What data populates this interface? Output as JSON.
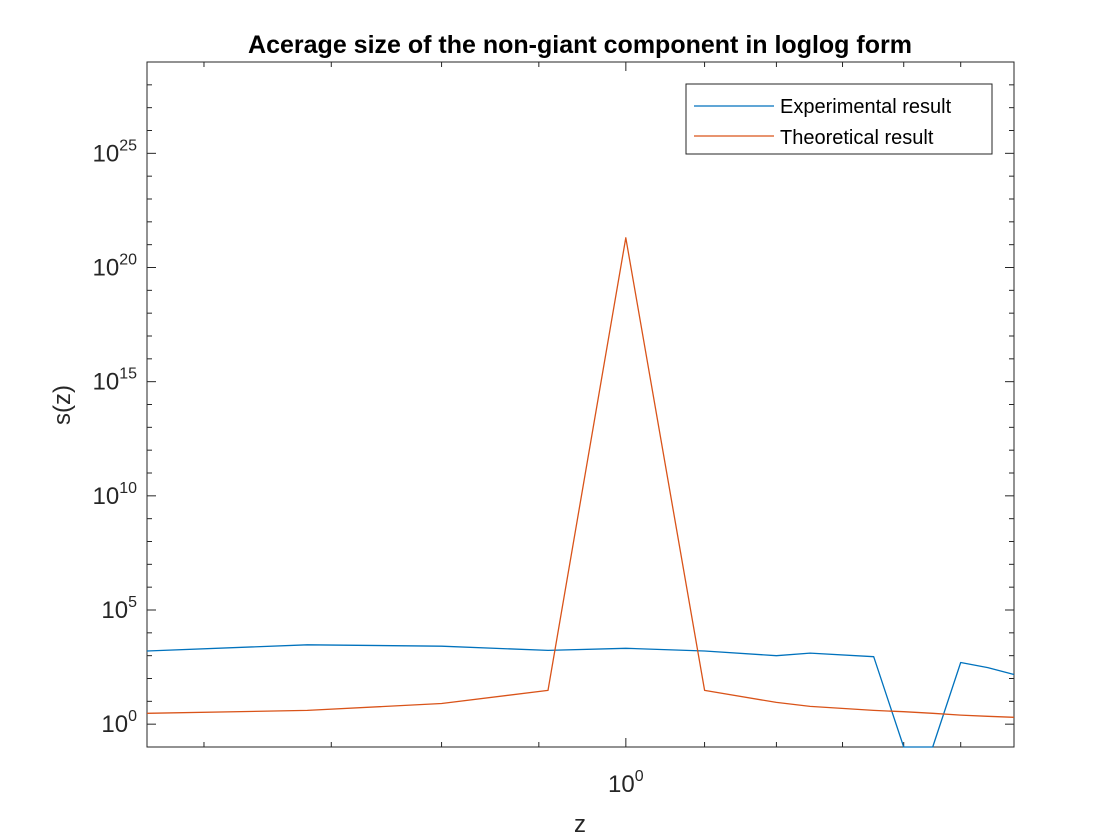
{
  "chart_data": {
    "type": "line",
    "title": "Acerage size of the non-giant component in loglog form",
    "xlabel": "z",
    "ylabel": "s(z)",
    "xscale": "log",
    "yscale": "log",
    "xlim": [
      0.56,
      1.6
    ],
    "ylim_exponents": [
      -1,
      29
    ],
    "x_ticks": [
      {
        "base": "10",
        "exp": "0",
        "value": 1
      }
    ],
    "y_ticks": [
      {
        "base": "10",
        "exp": "0",
        "value": 1
      },
      {
        "base": "10",
        "exp": "5",
        "value": 100000
      },
      {
        "base": "10",
        "exp": "10",
        "value": 10000000000
      },
      {
        "base": "10",
        "exp": "15",
        "value": 1000000000000000.0
      },
      {
        "base": "10",
        "exp": "20",
        "value": 1e+20
      },
      {
        "base": "10",
        "exp": "25",
        "value": 1e+25
      }
    ],
    "legend_position": "top-right",
    "grid": false,
    "series": [
      {
        "name": "Experimental result",
        "color": "#0072BD",
        "x": [
          0.56,
          0.68,
          0.8,
          0.91,
          1.0,
          1.1,
          1.2,
          1.25,
          1.35,
          1.4,
          1.45,
          1.5,
          1.55,
          1.6
        ],
        "y": [
          1600,
          3000,
          2600,
          1700,
          2100,
          1600,
          1000,
          1300,
          900,
          0.05,
          0.05,
          500,
          300,
          150
        ]
      },
      {
        "name": "Theoretical result",
        "color": "#D95319",
        "x": [
          0.56,
          0.68,
          0.8,
          0.91,
          1.0,
          1.1,
          1.2,
          1.25,
          1.35,
          1.4,
          1.45,
          1.5,
          1.55,
          1.6
        ],
        "y": [
          3,
          4,
          8,
          30,
          2e+21,
          30,
          9,
          6,
          4,
          3.5,
          3,
          2.5,
          2.2,
          2
        ]
      }
    ]
  }
}
